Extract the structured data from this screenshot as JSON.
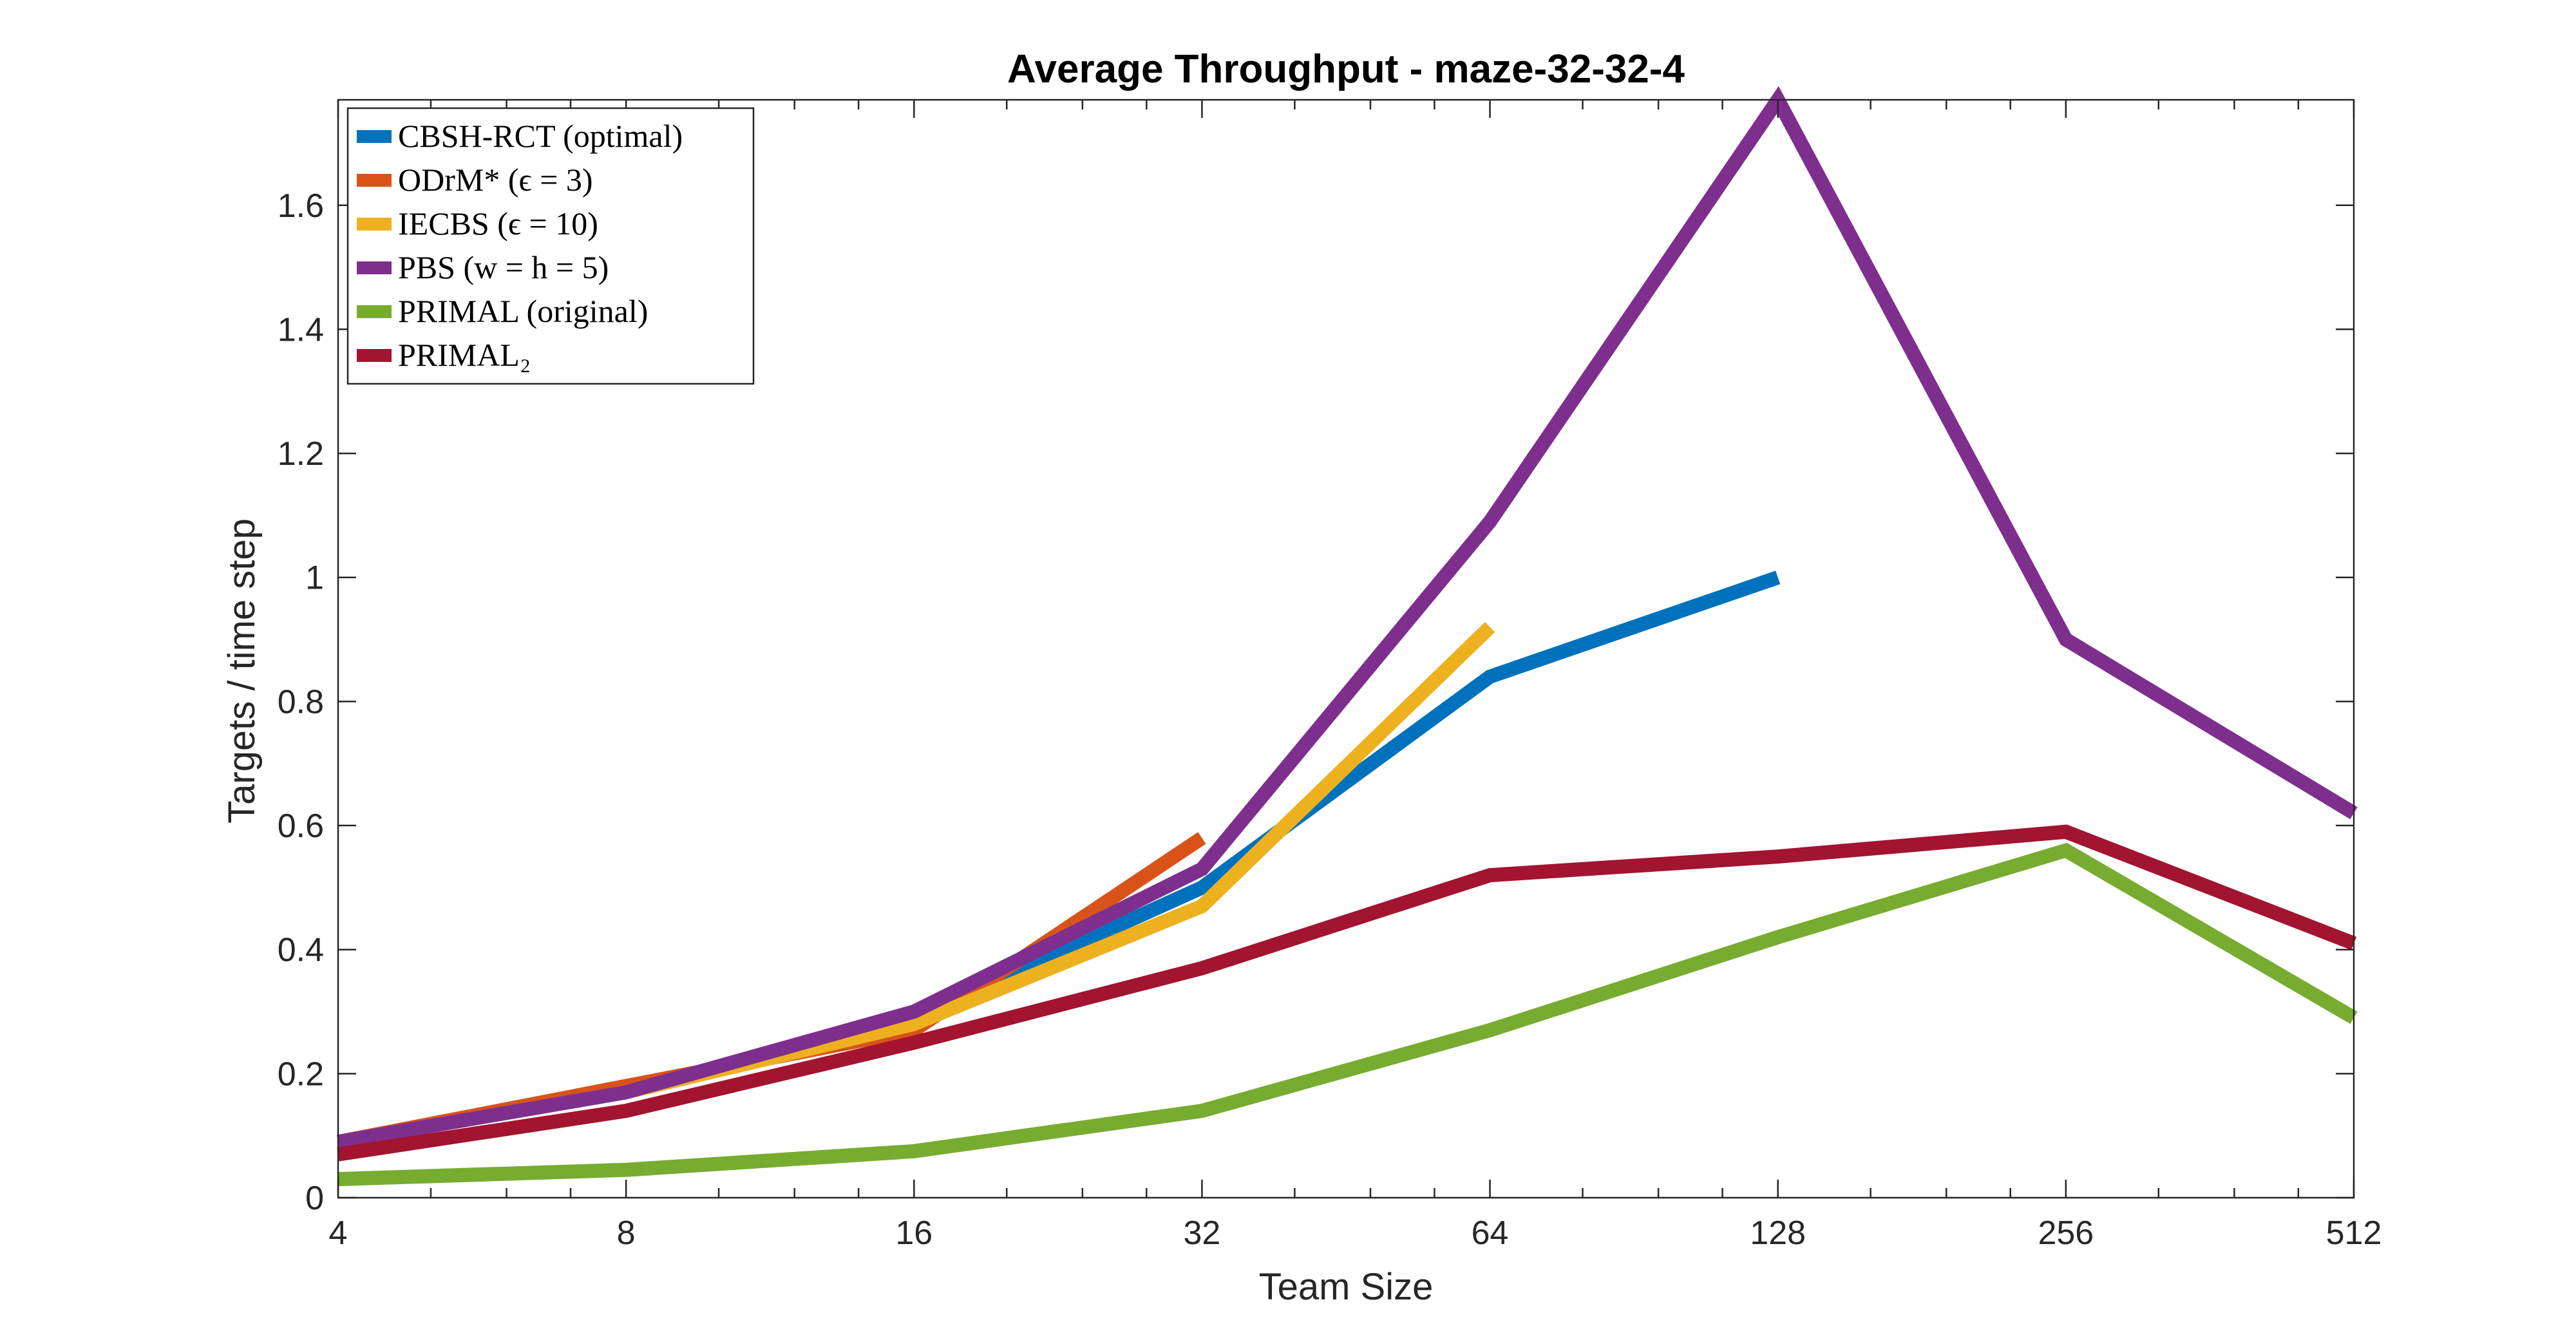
{
  "chart_data": {
    "type": "line",
    "title": "Average Throughput - maze-32-32-4",
    "xlabel": "Team Size",
    "ylabel": "Targets / time step",
    "x_scale": "log2",
    "x_ticks": [
      4,
      8,
      16,
      32,
      64,
      128,
      256,
      512
    ],
    "x_tick_labels": [
      "4",
      "8",
      "16",
      "32",
      "64",
      "128",
      "256",
      "512"
    ],
    "xlim": [
      4,
      512
    ],
    "ylim": [
      0,
      1.77
    ],
    "y_ticks": [
      0,
      0.2,
      0.4,
      0.6,
      0.8,
      1,
      1.2,
      1.4,
      1.6
    ],
    "y_tick_labels": [
      "0",
      "0.2",
      "0.4",
      "0.6",
      "0.8",
      "1",
      "1.2",
      "1.4",
      "1.6"
    ],
    "grid": false,
    "legend_position": "top-left",
    "series": [
      {
        "name": "CBSH-RCT (optimal)",
        "color": "#0072BD",
        "x": [
          4,
          8,
          16,
          32,
          64,
          128
        ],
        "y": [
          0.09,
          0.17,
          0.29,
          0.5,
          0.84,
          1.0
        ]
      },
      {
        "name": "ODrM* (ϵ = 3)",
        "color": "#D95319",
        "x": [
          4,
          8,
          16,
          32
        ],
        "y": [
          0.09,
          0.18,
          0.27,
          0.58
        ]
      },
      {
        "name": "IECBS (ϵ = 10)",
        "color": "#EDB120",
        "x": [
          4,
          8,
          16,
          32,
          64
        ],
        "y": [
          0.09,
          0.17,
          0.28,
          0.47,
          0.92
        ]
      },
      {
        "name": "PBS (w = h = 5)",
        "color": "#7E2F8E",
        "x": [
          4,
          8,
          16,
          32,
          64,
          128,
          256,
          512
        ],
        "y": [
          0.09,
          0.17,
          0.3,
          0.53,
          1.09,
          1.77,
          0.9,
          0.62
        ]
      },
      {
        "name": "PRIMAL (original)",
        "color": "#77AC30",
        "x": [
          4,
          8,
          16,
          32,
          64,
          128,
          256,
          512
        ],
        "y": [
          0.03,
          0.045,
          0.075,
          0.14,
          0.27,
          0.42,
          0.56,
          0.29
        ]
      },
      {
        "name": "PRIMAL₂",
        "color": "#A2142F",
        "x": [
          4,
          8,
          16,
          32,
          64,
          128,
          256,
          512
        ],
        "y": [
          0.07,
          0.14,
          0.25,
          0.37,
          0.52,
          0.55,
          0.59,
          0.41
        ]
      }
    ]
  }
}
